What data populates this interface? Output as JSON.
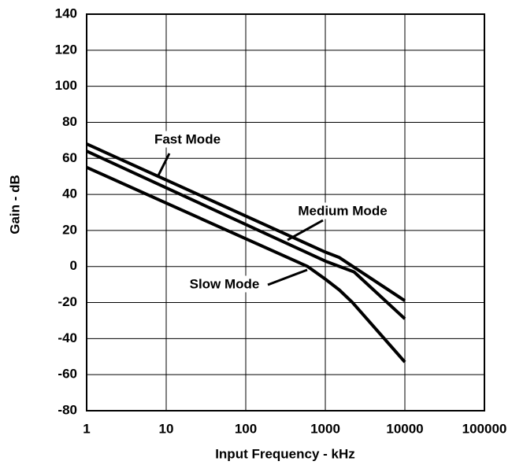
{
  "chart_data": {
    "type": "line",
    "x_label": "Input Frequency - kHz",
    "y_label": "Gain - dB",
    "x_log": true,
    "grid": true,
    "xlim": [
      1,
      100000
    ],
    "xticks": [
      1,
      10,
      100,
      1000,
      10000,
      100000
    ],
    "ylim": [
      -80,
      140
    ],
    "yticks": [
      -80,
      -60,
      -40,
      -20,
      0,
      20,
      40,
      60,
      80,
      100,
      120,
      140
    ],
    "series": [
      {
        "name": "Fast Mode",
        "color": "#000000",
        "x": [
          1,
          1000,
          1500,
          10000
        ],
        "values": [
          68,
          8,
          5,
          -19
        ]
      },
      {
        "name": "Medium Mode",
        "color": "#000000",
        "x": [
          1,
          1000,
          2300,
          10000
        ],
        "values": [
          64,
          3,
          -3,
          -29
        ]
      },
      {
        "name": "Slow Mode",
        "color": "#000000",
        "x": [
          1,
          600,
          1000,
          1500,
          2200,
          10000
        ],
        "values": [
          55,
          0,
          -7,
          -13,
          -20,
          -53
        ]
      }
    ]
  }
}
